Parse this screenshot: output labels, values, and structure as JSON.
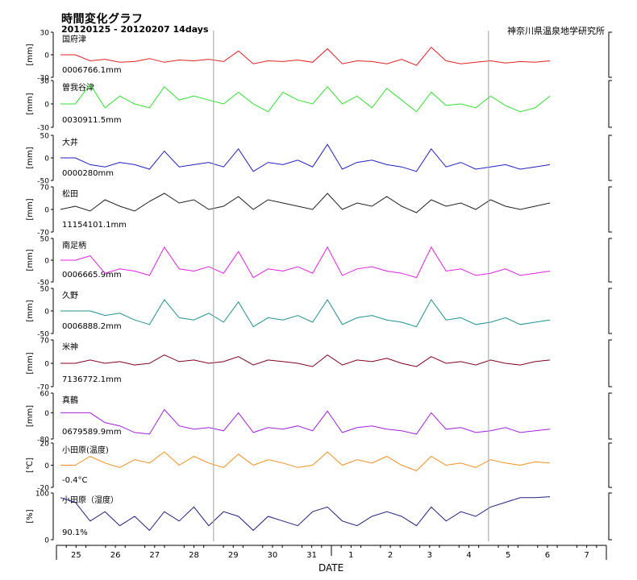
{
  "header": {
    "title": "時間変化グラフ",
    "subtitle": "20120125 - 20120207 14days",
    "organization": "神奈川県温泉地学研究所"
  },
  "chart_data": {
    "type": "line",
    "xlabel": "DATE",
    "x_ticks": [
      "25",
      "26",
      "27",
      "28",
      "29",
      "30",
      "31",
      "1",
      "2",
      "3",
      "4",
      "5",
      "6",
      "7"
    ],
    "day_separators_after": [
      "28",
      "4"
    ],
    "month_separator_after": "31",
    "panels": [
      {
        "name": "国府津",
        "unit": "[mm]",
        "ylim": [
          -30,
          30
        ],
        "ticks": [
          "30",
          "0",
          "-30"
        ],
        "value_text": "0006766.1mm",
        "color": "#e02020",
        "values": [
          0,
          0,
          -8,
          -6,
          -10,
          -9,
          -5,
          -10,
          -7,
          -8,
          -6,
          -9,
          5,
          -12,
          -8,
          -9,
          -7,
          -10,
          8,
          -12,
          -8,
          -9,
          -12,
          -6,
          -14,
          10,
          -8,
          -12,
          -10,
          -8,
          -11,
          -9,
          -10,
          -8
        ]
      },
      {
        "name": "曽我谷津",
        "unit": "[mm]",
        "ylim": [
          -30,
          30
        ],
        "ticks": [
          "30",
          "0",
          "-30"
        ],
        "value_text": "0030911.5mm",
        "color": "#30e030",
        "values": [
          0,
          0,
          25,
          -5,
          10,
          0,
          -5,
          22,
          5,
          10,
          5,
          0,
          15,
          0,
          -10,
          15,
          5,
          0,
          22,
          0,
          10,
          -5,
          20,
          5,
          -10,
          15,
          -2,
          0,
          -5,
          10,
          -2,
          -10,
          -5,
          10
        ]
      },
      {
        "name": "大井",
        "unit": "[mm]",
        "ylim": [
          -50,
          50
        ],
        "ticks": [
          "50",
          "0",
          "-50"
        ],
        "value_text": "0000280mm",
        "color": "#2020c0",
        "values": [
          0,
          0,
          -15,
          -20,
          -10,
          -15,
          -25,
          15,
          -20,
          -15,
          -10,
          -20,
          20,
          -30,
          -10,
          -15,
          -5,
          -20,
          30,
          -25,
          -10,
          -5,
          -15,
          -20,
          -30,
          20,
          -20,
          -10,
          -25,
          -20,
          -15,
          -25,
          -20,
          -15
        ]
      },
      {
        "name": "松田",
        "unit": "[mm]",
        "ylim": [
          -70,
          70
        ],
        "ticks": [
          "70",
          "0",
          "-70"
        ],
        "value_text": "11154101.1mm",
        "color": "#202020",
        "values": [
          0,
          10,
          -5,
          30,
          10,
          -5,
          25,
          50,
          20,
          30,
          0,
          10,
          40,
          0,
          30,
          20,
          10,
          0,
          50,
          0,
          20,
          10,
          40,
          10,
          -10,
          30,
          10,
          20,
          0,
          30,
          10,
          0,
          10,
          20
        ]
      },
      {
        "name": "南足柄",
        "unit": "[mm]",
        "ylim": [
          -50,
          50
        ],
        "ticks": [
          "50",
          "0",
          "-50"
        ],
        "value_text": "0006665.9mm",
        "color": "#e020e0",
        "values": [
          0,
          0,
          10,
          -30,
          -20,
          -25,
          -35,
          30,
          -20,
          -25,
          -15,
          -30,
          20,
          -40,
          -20,
          -25,
          -15,
          -30,
          30,
          -35,
          -20,
          -15,
          -25,
          -30,
          -40,
          30,
          -25,
          -20,
          -35,
          -30,
          -20,
          -35,
          -30,
          -25
        ]
      },
      {
        "name": "久野",
        "unit": "[mm]",
        "ylim": [
          -50,
          50
        ],
        "ticks": [
          "50",
          "0",
          "-50"
        ],
        "value_text": "0006888.2mm",
        "color": "#209090",
        "values": [
          0,
          0,
          0,
          -10,
          -5,
          -20,
          -30,
          25,
          -15,
          -20,
          -5,
          -25,
          20,
          -35,
          -15,
          -20,
          -10,
          -25,
          25,
          -30,
          -15,
          -10,
          -20,
          -25,
          -35,
          25,
          -20,
          -15,
          -30,
          -25,
          -15,
          -30,
          -25,
          -20
        ]
      },
      {
        "name": "米神",
        "unit": "[mm]",
        "ylim": [
          -70,
          70
        ],
        "ticks": [
          "70",
          "0",
          "-70"
        ],
        "value_text": "7136772.1mm",
        "color": "#800020",
        "values": [
          0,
          0,
          10,
          0,
          5,
          -5,
          0,
          25,
          5,
          10,
          0,
          5,
          20,
          -5,
          10,
          5,
          0,
          -10,
          25,
          -5,
          10,
          5,
          15,
          0,
          -10,
          20,
          0,
          5,
          -5,
          10,
          0,
          -5,
          5,
          10
        ]
      },
      {
        "name": "真鶴",
        "unit": "[mm]",
        "ylim": [
          -80,
          60
        ],
        "ticks": [
          "60",
          "0",
          "-80"
        ],
        "value_text": "0679589.9mm",
        "color": "#a020e0",
        "values": [
          0,
          0,
          0,
          -30,
          -40,
          -60,
          -65,
          10,
          -40,
          -50,
          -45,
          -55,
          0,
          -60,
          -45,
          -50,
          -40,
          -55,
          5,
          -60,
          -45,
          -40,
          -50,
          -55,
          -65,
          0,
          -50,
          -45,
          -60,
          -55,
          -45,
          -60,
          -55,
          -50
        ]
      },
      {
        "name": "小田原(温度)",
        "unit": "[℃]",
        "ylim": [
          -20,
          20
        ],
        "ticks": [
          "20",
          "0",
          "-20"
        ],
        "value_text": "-0.4°C",
        "color": "#f09020",
        "values": [
          0,
          0,
          8,
          2,
          -2,
          5,
          2,
          12,
          0,
          8,
          2,
          -2,
          10,
          0,
          5,
          2,
          -2,
          0,
          12,
          0,
          5,
          2,
          8,
          0,
          -5,
          8,
          0,
          2,
          -2,
          5,
          2,
          0,
          3,
          2
        ]
      },
      {
        "name": "小田原（湿度）",
        "unit": "[%]",
        "ylim": [
          0,
          100
        ],
        "ticks": [
          "100",
          "0"
        ],
        "value_text": "90.1%",
        "color": "#202080",
        "values": [
          90,
          80,
          40,
          60,
          30,
          50,
          20,
          60,
          40,
          70,
          30,
          60,
          50,
          20,
          50,
          40,
          30,
          60,
          70,
          40,
          30,
          50,
          60,
          50,
          30,
          70,
          40,
          60,
          50,
          70,
          80,
          90,
          90,
          92
        ]
      }
    ]
  }
}
